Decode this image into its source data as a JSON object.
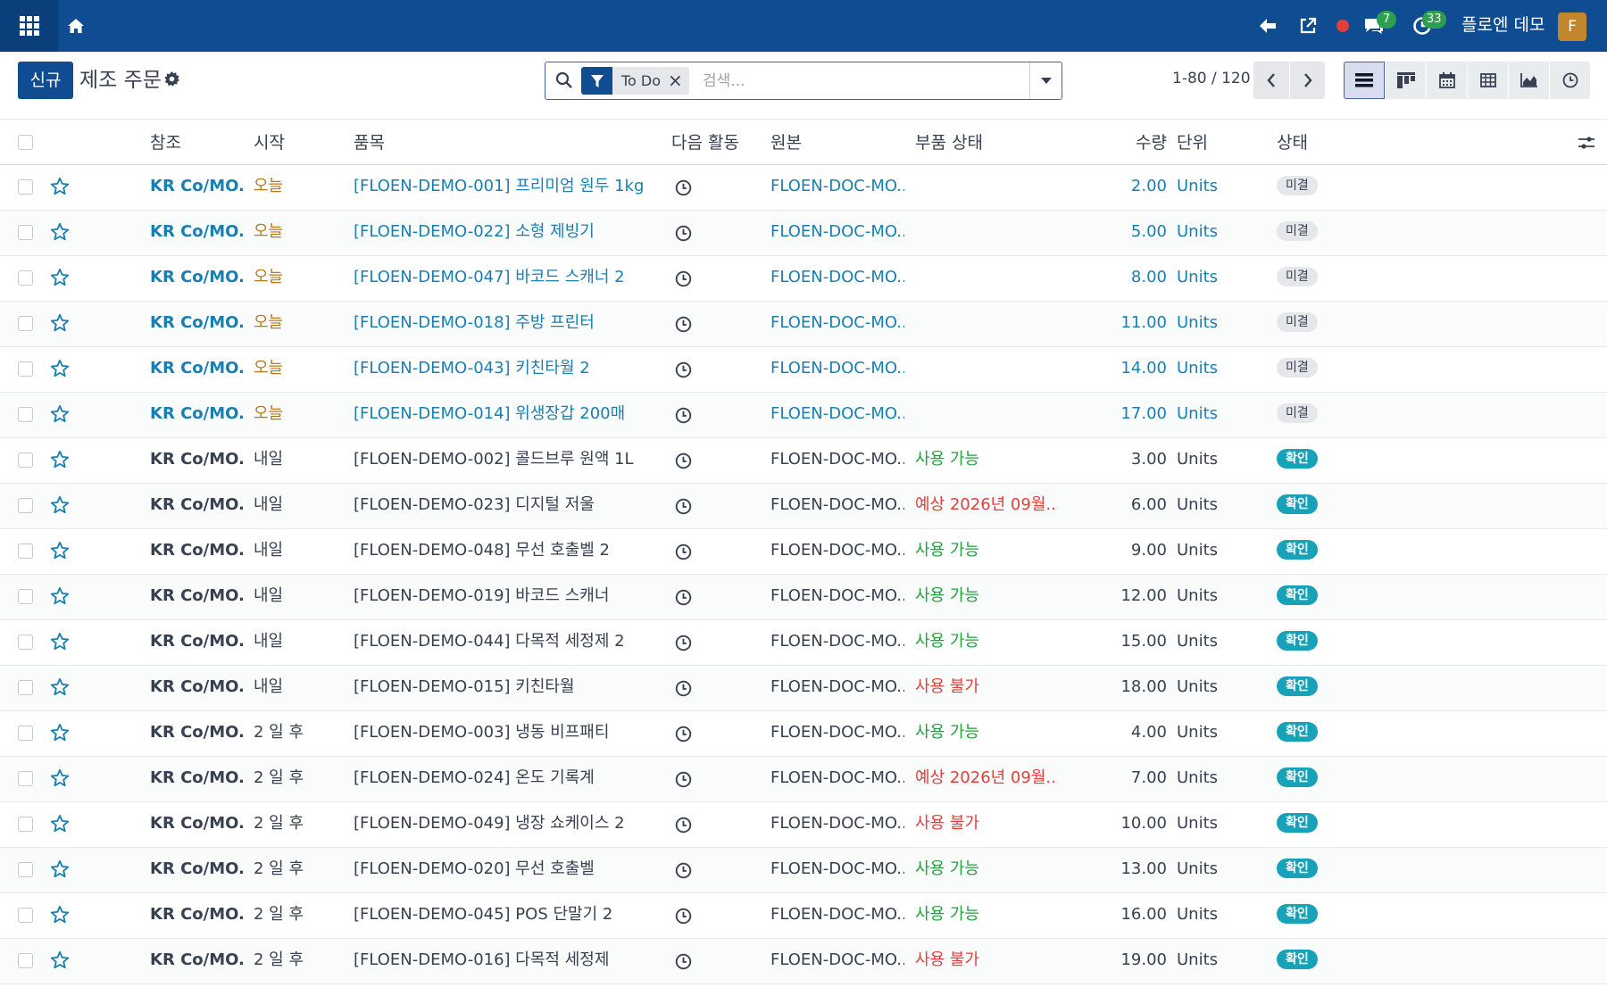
{
  "topbar": {
    "chat_count": "7",
    "activity_count": "33",
    "user_name": "플로엔 데모",
    "avatar_letter": "F",
    "brand_color": "#0f4c92"
  },
  "control": {
    "new_label": "신규",
    "title": "제조 주문",
    "search_facet": "To Do",
    "search_placeholder": "검색...",
    "pager": "1-80 / 120"
  },
  "columns": {
    "ref": "참조",
    "start": "시작",
    "product": "품목",
    "activity": "다음 활동",
    "origin": "원본",
    "component_status": "부품 상태",
    "qty": "수량",
    "uom": "단위",
    "state": "상태"
  },
  "rows": [
    {
      "ref": "KR Co/MO...",
      "start": "오늘",
      "product": "[FLOEN-DEMO-001] 프리미엄 원두 1kg",
      "origin": "FLOEN-DOC-MO...",
      "comp": "",
      "comp_kind": "",
      "qty": "2.00",
      "uom": "Units",
      "state": "미결",
      "kind": "open"
    },
    {
      "ref": "KR Co/MO...",
      "start": "오늘",
      "product": "[FLOEN-DEMO-022] 소형 제빙기",
      "origin": "FLOEN-DOC-MO...",
      "comp": "",
      "comp_kind": "",
      "qty": "5.00",
      "uom": "Units",
      "state": "미결",
      "kind": "open"
    },
    {
      "ref": "KR Co/MO...",
      "start": "오늘",
      "product": "[FLOEN-DEMO-047] 바코드 스캐너 2",
      "origin": "FLOEN-DOC-MO...",
      "comp": "",
      "comp_kind": "",
      "qty": "8.00",
      "uom": "Units",
      "state": "미결",
      "kind": "open"
    },
    {
      "ref": "KR Co/MO...",
      "start": "오늘",
      "product": "[FLOEN-DEMO-018] 주방 프린터",
      "origin": "FLOEN-DOC-MO...",
      "comp": "",
      "comp_kind": "",
      "qty": "11.00",
      "uom": "Units",
      "state": "미결",
      "kind": "open"
    },
    {
      "ref": "KR Co/MO...",
      "start": "오늘",
      "product": "[FLOEN-DEMO-043] 키친타월 2",
      "origin": "FLOEN-DOC-MO...",
      "comp": "",
      "comp_kind": "",
      "qty": "14.00",
      "uom": "Units",
      "state": "미결",
      "kind": "open"
    },
    {
      "ref": "KR Co/MO...",
      "start": "오늘",
      "product": "[FLOEN-DEMO-014] 위생장갑 200매",
      "origin": "FLOEN-DOC-MO...",
      "comp": "",
      "comp_kind": "",
      "qty": "17.00",
      "uom": "Units",
      "state": "미결",
      "kind": "open"
    },
    {
      "ref": "KR Co/MO...",
      "start": "내일",
      "product": "[FLOEN-DEMO-002] 콜드브루 원액 1L",
      "origin": "FLOEN-DOC-MO...",
      "comp": "사용 가능",
      "comp_kind": "ok",
      "qty": "3.00",
      "uom": "Units",
      "state": "확인",
      "kind": "conf"
    },
    {
      "ref": "KR Co/MO...",
      "start": "내일",
      "product": "[FLOEN-DEMO-023] 디지털 저울",
      "origin": "FLOEN-DOC-MO...",
      "comp": "예상 2026년 09월...",
      "comp_kind": "bad",
      "qty": "6.00",
      "uom": "Units",
      "state": "확인",
      "kind": "conf"
    },
    {
      "ref": "KR Co/MO...",
      "start": "내일",
      "product": "[FLOEN-DEMO-048] 무선 호출벨 2",
      "origin": "FLOEN-DOC-MO...",
      "comp": "사용 가능",
      "comp_kind": "ok",
      "qty": "9.00",
      "uom": "Units",
      "state": "확인",
      "kind": "conf"
    },
    {
      "ref": "KR Co/MO...",
      "start": "내일",
      "product": "[FLOEN-DEMO-019] 바코드 스캐너",
      "origin": "FLOEN-DOC-MO...",
      "comp": "사용 가능",
      "comp_kind": "ok",
      "qty": "12.00",
      "uom": "Units",
      "state": "확인",
      "kind": "conf"
    },
    {
      "ref": "KR Co/MO...",
      "start": "내일",
      "product": "[FLOEN-DEMO-044] 다목적 세정제 2",
      "origin": "FLOEN-DOC-MO...",
      "comp": "사용 가능",
      "comp_kind": "ok",
      "qty": "15.00",
      "uom": "Units",
      "state": "확인",
      "kind": "conf"
    },
    {
      "ref": "KR Co/MO...",
      "start": "내일",
      "product": "[FLOEN-DEMO-015] 키친타월",
      "origin": "FLOEN-DOC-MO...",
      "comp": "사용 불가",
      "comp_kind": "bad",
      "qty": "18.00",
      "uom": "Units",
      "state": "확인",
      "kind": "conf"
    },
    {
      "ref": "KR Co/MO...",
      "start": "2 일 후",
      "product": "[FLOEN-DEMO-003] 냉동 비프패티",
      "origin": "FLOEN-DOC-MO...",
      "comp": "사용 가능",
      "comp_kind": "ok",
      "qty": "4.00",
      "uom": "Units",
      "state": "확인",
      "kind": "conf"
    },
    {
      "ref": "KR Co/MO...",
      "start": "2 일 후",
      "product": "[FLOEN-DEMO-024] 온도 기록계",
      "origin": "FLOEN-DOC-MO...",
      "comp": "예상 2026년 09월...",
      "comp_kind": "bad",
      "qty": "7.00",
      "uom": "Units",
      "state": "확인",
      "kind": "conf"
    },
    {
      "ref": "KR Co/MO...",
      "start": "2 일 후",
      "product": "[FLOEN-DEMO-049] 냉장 쇼케이스 2",
      "origin": "FLOEN-DOC-MO...",
      "comp": "사용 불가",
      "comp_kind": "bad",
      "qty": "10.00",
      "uom": "Units",
      "state": "확인",
      "kind": "conf"
    },
    {
      "ref": "KR Co/MO...",
      "start": "2 일 후",
      "product": "[FLOEN-DEMO-020] 무선 호출벨",
      "origin": "FLOEN-DOC-MO...",
      "comp": "사용 가능",
      "comp_kind": "ok",
      "qty": "13.00",
      "uom": "Units",
      "state": "확인",
      "kind": "conf"
    },
    {
      "ref": "KR Co/MO...",
      "start": "2 일 후",
      "product": "[FLOEN-DEMO-045] POS 단말기 2",
      "origin": "FLOEN-DOC-MO...",
      "comp": "사용 가능",
      "comp_kind": "ok",
      "qty": "16.00",
      "uom": "Units",
      "state": "확인",
      "kind": "conf"
    },
    {
      "ref": "KR Co/MO...",
      "start": "2 일 후",
      "product": "[FLOEN-DEMO-016] 다목적 세정제",
      "origin": "FLOEN-DOC-MO...",
      "comp": "사용 불가",
      "comp_kind": "bad",
      "qty": "19.00",
      "uom": "Units",
      "state": "확인",
      "kind": "conf"
    }
  ]
}
